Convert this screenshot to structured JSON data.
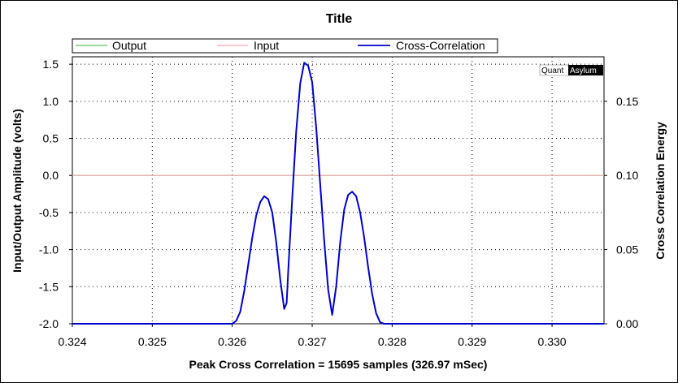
{
  "chart_data": {
    "type": "line",
    "title": "Title",
    "xlabel": "Peak Cross Correlation = 15695 samples  (326.97 mSec)",
    "ylabel": "Input/Output Amplitude (volts)",
    "y2label": "Cross Correlation Energy",
    "xlim": [
      0.324,
      0.33065
    ],
    "ylim": [
      -2.0,
      1.6
    ],
    "y2lim": [
      0.0,
      0.18
    ],
    "x_ticks": [
      "0.324",
      "0.325",
      "0.326",
      "0.327",
      "0.328",
      "0.329",
      "0.330"
    ],
    "y_ticks": [
      "1.5",
      "1.0",
      "0.5",
      "0.0",
      "-0.5",
      "-1.0",
      "-1.5",
      "-2.0"
    ],
    "y2_ticks": [
      "0.15",
      "0.10",
      "0.05",
      "0.00"
    ],
    "grid": true,
    "legend_position": "top",
    "series": [
      {
        "name": "Output",
        "color": "#5cc85c",
        "axis": "left",
        "x": [
          0.324,
          0.33065
        ],
        "y": [
          0.0,
          0.0
        ]
      },
      {
        "name": "Input",
        "color": "#f4a6b4",
        "axis": "left",
        "x": [
          0.324,
          0.33065
        ],
        "y": [
          0.0,
          0.0
        ]
      },
      {
        "name": "Cross-Correlation",
        "color": "#0000cc",
        "axis": "right",
        "x": [
          0.324,
          0.3255,
          0.326,
          0.32605,
          0.3261,
          0.32615,
          0.3262,
          0.32625,
          0.3263,
          0.32635,
          0.3264,
          0.32645,
          0.3265,
          0.32655,
          0.3266,
          0.32665,
          0.32668,
          0.3267,
          0.32675,
          0.3268,
          0.32685,
          0.3269,
          0.32695,
          0.327,
          0.32705,
          0.3271,
          0.32715,
          0.3272,
          0.32725,
          0.3273,
          0.32735,
          0.3274,
          0.32745,
          0.3275,
          0.32755,
          0.3276,
          0.32765,
          0.3277,
          0.32775,
          0.3278,
          0.32785,
          0.3279,
          0.328,
          0.3295,
          0.33065
        ],
        "y": [
          0.0,
          0.0,
          0.0,
          0.002,
          0.008,
          0.022,
          0.04,
          0.058,
          0.073,
          0.082,
          0.086,
          0.084,
          0.075,
          0.055,
          0.03,
          0.01,
          0.014,
          0.035,
          0.085,
          0.13,
          0.162,
          0.176,
          0.174,
          0.163,
          0.132,
          0.094,
          0.056,
          0.023,
          0.006,
          0.025,
          0.055,
          0.077,
          0.087,
          0.089,
          0.086,
          0.075,
          0.058,
          0.038,
          0.02,
          0.007,
          0.001,
          0.0,
          0.0,
          0.0,
          0.0
        ]
      }
    ]
  },
  "legend": {
    "items": [
      {
        "label": "Output",
        "color": "#5cc85c"
      },
      {
        "label": "Input",
        "color": "#f4a6b4"
      },
      {
        "label": "Cross-Correlation",
        "color": "#0000cc"
      }
    ]
  },
  "watermark": {
    "part1": "Quant",
    "part2": "Asylum"
  }
}
